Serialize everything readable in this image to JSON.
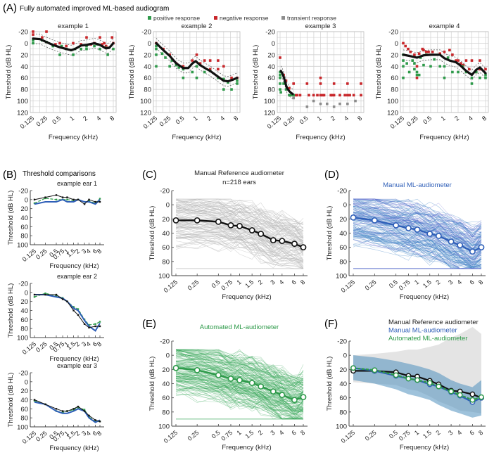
{
  "figure": {
    "panelA": {
      "letter": "(A)",
      "title": "Fully automated improved ML-based audiogram"
    },
    "panelB": {
      "letter": "(B)",
      "title": "Threshold comparisons"
    },
    "panelC": {
      "letter": "(C)"
    },
    "panelD": {
      "letter": "(D)"
    },
    "panelE": {
      "letter": "(E)"
    },
    "panelF": {
      "letter": "(F)"
    },
    "legendA": [
      {
        "label": "positive response",
        "color": "#2e9a4a"
      },
      {
        "label": "negative response",
        "color": "#c8262a"
      },
      {
        "label": "transient response",
        "color": "#8c8c8c"
      }
    ],
    "colors": {
      "reference": "#111111",
      "manual_ml": "#2f5fb8",
      "automated_ml": "#2e9a4a",
      "grey_traces": "#c8c8c8",
      "blue_traces": "#3a7fc4",
      "green_traces": "#3aa85a"
    }
  },
  "chart_data": [
    {
      "id": "A1",
      "type": "scatter",
      "title": "example 1",
      "xlabel": "Frequency (kHz)",
      "ylabel": "Threshold (dB HL)",
      "xticks": [
        "0.125",
        "0.25",
        "0.5",
        "1",
        "2",
        "4",
        "8"
      ],
      "x_scale": "log2",
      "yticks": [
        "-20",
        "0",
        "20",
        "40",
        "60",
        "80",
        "100",
        "120"
      ],
      "ylim": [
        -20,
        120
      ],
      "y_inverted": true,
      "curve": {
        "x": [
          0.125,
          0.18,
          0.25,
          0.35,
          0.5,
          0.7,
          0.9,
          1.1,
          1.5,
          2,
          3,
          4,
          5.5,
          6.5,
          8
        ],
        "y": [
          -8,
          -7,
          -2,
          3,
          7,
          10,
          12,
          10,
          4,
          3,
          0,
          3,
          9,
          8,
          0
        ]
      },
      "positive": {
        "x": [
          0.125,
          0.125,
          0.2,
          0.25,
          0.35,
          0.5,
          0.55,
          0.7,
          0.9,
          1,
          1.1,
          1.5,
          2,
          2,
          3,
          3.5,
          4,
          5.5,
          6,
          8
        ],
        "y": [
          0,
          -5,
          -5,
          -2,
          5,
          20,
          5,
          10,
          12,
          20,
          10,
          10,
          10,
          5,
          5,
          2,
          10,
          8,
          20,
          10
        ]
      },
      "negative": {
        "x": [
          0.125,
          0.125,
          0.2,
          0.25,
          0.25,
          0.4,
          0.5,
          0.7,
          1,
          1.5,
          2,
          2.5,
          3,
          4,
          4.5,
          5,
          5.5,
          6,
          7.5,
          8
        ],
        "y": [
          -20,
          -15,
          -10,
          -20,
          -2,
          2,
          0,
          5,
          0,
          2,
          -10,
          2,
          0,
          -10,
          2,
          0,
          5,
          8,
          -10,
          0
        ]
      },
      "transient": {
        "x": [],
        "y": []
      }
    },
    {
      "id": "A2",
      "type": "scatter",
      "title": "example 2",
      "xlabel": "Frequency (kHz)",
      "ylabel": "Threshold (dB HL)",
      "xticks": [
        "0.125",
        "0.25",
        "0.5",
        "1",
        "2",
        "4",
        "8"
      ],
      "x_scale": "log2",
      "yticks": [
        "-20",
        "0",
        "20",
        "40",
        "60",
        "80",
        "100",
        "120"
      ],
      "ylim": [
        -20,
        120
      ],
      "y_inverted": true,
      "curve": {
        "x": [
          0.125,
          0.18,
          0.25,
          0.35,
          0.5,
          0.65,
          0.8,
          0.95,
          1.2,
          1.6,
          2,
          3,
          4,
          5,
          6.5,
          8
        ],
        "y": [
          0,
          12,
          22,
          35,
          43,
          43,
          35,
          31,
          38,
          44,
          48,
          58,
          65,
          66,
          63,
          60
        ]
      },
      "positive": {
        "x": [
          0.125,
          0.125,
          0.125,
          0.125,
          0.17,
          0.2,
          0.25,
          0.28,
          0.35,
          0.4,
          0.5,
          0.5,
          0.8,
          1,
          1,
          1.5,
          2,
          3,
          4,
          4,
          5,
          6,
          8,
          8
        ],
        "y": [
          10,
          20,
          40,
          5,
          18,
          25,
          40,
          30,
          38,
          42,
          60,
          45,
          50,
          60,
          40,
          50,
          48,
          60,
          80,
          62,
          68,
          80,
          65,
          70
        ]
      },
      "negative": {
        "x": [
          0.125,
          0.18,
          0.25,
          0.35,
          0.5,
          0.8,
          1,
          1.2,
          1.5,
          2,
          2,
          3,
          3,
          4,
          6,
          8
        ],
        "y": [
          0,
          10,
          20,
          35,
          40,
          30,
          20,
          35,
          30,
          30,
          45,
          30,
          45,
          40,
          60,
          60
        ]
      },
      "transient": {
        "x": [],
        "y": []
      }
    },
    {
      "id": "A3",
      "type": "scatter",
      "title": "example 3",
      "xlabel": "Frequency (kHz)",
      "ylabel": "Threshold (dB HL)",
      "xticks": [
        "0.125",
        "0.25",
        "0.5",
        "1",
        "2",
        "4",
        "8"
      ],
      "x_scale": "log2",
      "yticks": [
        "-20",
        "0",
        "20",
        "40",
        "60",
        "80",
        "100",
        "120"
      ],
      "ylim": [
        -20,
        120
      ],
      "y_inverted": true,
      "curve": {
        "x": [
          0.13,
          0.14,
          0.15,
          0.16,
          0.17,
          0.18,
          0.2,
          0.22,
          0.24
        ],
        "y": [
          48,
          52,
          58,
          65,
          73,
          78,
          83,
          86,
          88
        ]
      },
      "positive": {
        "x": [
          0.125,
          0.125,
          0.125,
          0.125,
          0.125,
          0.13,
          0.15,
          0.17,
          0.2,
          0.22,
          0.25
        ],
        "y": [
          50,
          55,
          60,
          70,
          80,
          85,
          70,
          80,
          90,
          90,
          90
        ]
      },
      "negative": {
        "x": [
          0.125,
          0.15,
          0.17,
          0.2,
          0.25,
          0.25,
          0.28,
          0.3,
          0.35,
          0.5,
          0.55,
          0.7,
          0.85,
          1,
          1,
          1,
          1.1,
          1.2,
          1.7,
          1.8,
          2,
          2,
          2.7,
          3.5,
          4,
          4,
          4.5,
          5.5,
          8,
          8
        ],
        "y": [
          25,
          55,
          65,
          78,
          70,
          90,
          90,
          90,
          90,
          70,
          90,
          90,
          90,
          60,
          70,
          90,
          90,
          90,
          90,
          90,
          70,
          90,
          90,
          90,
          70,
          90,
          90,
          90,
          70,
          90
        ]
      },
      "transient": {
        "x": [
          0.25,
          0.5,
          0.7,
          1,
          1.4,
          2,
          2.7,
          4,
          6
        ],
        "y": [
          95,
          110,
          100,
          105,
          105,
          110,
          105,
          105,
          100
        ]
      }
    },
    {
      "id": "A4",
      "type": "scatter",
      "title": "example 4",
      "xlabel": "Frequency (kHz)",
      "ylabel": "Threshold (dB HL)",
      "xticks": [
        "0.125",
        "0.25",
        "0.5",
        "1",
        "2",
        "4",
        "8"
      ],
      "x_scale": "log2",
      "yticks": [
        "-20",
        "0",
        "20",
        "40",
        "60",
        "80",
        "100",
        "120"
      ],
      "ylim": [
        -20,
        120
      ],
      "y_inverted": true,
      "curve": {
        "x": [
          0.125,
          0.17,
          0.25,
          0.35,
          0.5,
          0.8,
          1,
          1.3,
          1.8,
          2.2,
          3,
          4,
          5,
          6,
          8
        ],
        "y": [
          20,
          22,
          25,
          21,
          20,
          20,
          26,
          30,
          33,
          38,
          48,
          55,
          46,
          42,
          52
        ]
      },
      "positive": {
        "x": [
          0.125,
          0.125,
          0.125,
          0.125,
          0.15,
          0.17,
          0.2,
          0.22,
          0.22,
          0.25,
          0.25,
          0.28,
          0.3,
          0.35,
          0.4,
          0.5,
          0.6,
          0.8,
          1,
          1,
          1.2,
          1.5,
          2,
          2.5,
          3,
          4,
          4,
          5,
          6,
          8,
          8
        ],
        "y": [
          20,
          30,
          40,
          60,
          35,
          50,
          30,
          35,
          45,
          50,
          55,
          55,
          25,
          38,
          20,
          40,
          28,
          40,
          40,
          60,
          25,
          50,
          50,
          40,
          50,
          60,
          70,
          50,
          60,
          55,
          60
        ]
      },
      "negative": {
        "x": [
          0.125,
          0.14,
          0.16,
          0.18,
          0.22,
          0.25,
          0.25,
          0.28,
          0.33,
          0.35,
          0.4,
          0.45,
          0.55,
          0.8,
          1,
          1.3,
          1.5,
          1.8,
          2,
          2.3,
          2.6,
          3,
          3.5,
          4,
          5,
          6,
          6,
          8
        ],
        "y": [
          0,
          5,
          10,
          15,
          20,
          40,
          60,
          18,
          10,
          12,
          15,
          15,
          15,
          18,
          15,
          12,
          20,
          30,
          30,
          35,
          38,
          30,
          45,
          30,
          50,
          30,
          45,
          45
        ]
      },
      "transient": {
        "x": [],
        "y": []
      }
    },
    {
      "id": "B1",
      "type": "line",
      "title": "example ear 1",
      "xlabel": "Frequency (kHz)",
      "ylabel": "Threshold (dB HL)",
      "xticks": [
        "0.125",
        "0.25",
        "0.5",
        "0.75",
        "1",
        "1.5",
        "2",
        "3",
        "4",
        "6",
        "8"
      ],
      "yticks": [
        "-20",
        "0",
        "20",
        "40",
        "60",
        "80",
        "100"
      ],
      "ylim": [
        -20,
        100
      ],
      "y_inverted": true,
      "series": [
        {
          "name": "Manual Reference audiometer",
          "values": [
            0,
            -5,
            -10,
            -5,
            -5,
            0,
            0,
            10,
            0,
            5,
            5
          ]
        },
        {
          "name": "Manual ML-audiometer",
          "values": [
            10,
            5,
            5,
            0,
            5,
            5,
            0,
            5,
            5,
            10,
            0
          ]
        },
        {
          "name": "Automated ML-audiometer",
          "values": [
            8,
            -3,
            0,
            0,
            0,
            2,
            0,
            5,
            3,
            8,
            -2
          ]
        }
      ]
    },
    {
      "id": "B2",
      "type": "line",
      "title": "example ear 2",
      "xlabel": "Frequency (kHz)",
      "ylabel": "Threshold (dB HL)",
      "xticks": [
        "0.125",
        "0.25",
        "0.5",
        "0.75",
        "1",
        "1.5",
        "2",
        "3",
        "4",
        "6",
        "8"
      ],
      "yticks": [
        "-20",
        "0",
        "20",
        "40",
        "60",
        "80",
        "100"
      ],
      "ylim": [
        -20,
        100
      ],
      "y_inverted": true,
      "series": [
        {
          "name": "Manual Reference audiometer",
          "values": [
            5,
            5,
            5,
            15,
            20,
            40,
            50,
            70,
            78,
            75,
            75
          ]
        },
        {
          "name": "Manual ML-audiometer",
          "values": [
            5,
            5,
            10,
            13,
            20,
            35,
            40,
            62,
            75,
            85,
            68
          ]
        },
        {
          "name": "Automated ML-audiometer",
          "values": [
            10,
            2,
            8,
            12,
            20,
            32,
            37,
            60,
            72,
            70,
            65
          ]
        }
      ]
    },
    {
      "id": "B3",
      "type": "line",
      "title": "example ear 3",
      "xlabel": "Frequency (kHz)",
      "ylabel": "Threshold (dB HL)",
      "xticks": [
        "0.125",
        "0.25",
        "0.5",
        "0.75",
        "1",
        "1.5",
        "2",
        "3",
        "4",
        "6",
        "8"
      ],
      "yticks": [
        "-20",
        "0",
        "20",
        "40",
        "60",
        "80",
        "100"
      ],
      "ylim": [
        -20,
        100
      ],
      "y_inverted": true,
      "series": [
        {
          "name": "Manual Reference audiometer",
          "values": [
            40,
            50,
            60,
            65,
            65,
            60,
            55,
            65,
            75,
            85,
            88
          ]
        },
        {
          "name": "Manual ML-audiometer",
          "values": [
            45,
            50,
            65,
            70,
            70,
            65,
            60,
            65,
            80,
            90,
            85
          ]
        },
        {
          "name": "Automated ML-audiometer",
          "values": [
            42,
            50,
            65,
            68,
            65,
            62,
            57,
            62,
            78,
            88,
            88
          ]
        }
      ]
    },
    {
      "id": "C",
      "type": "line",
      "title": "Manual Reference audiometer",
      "subtitle": "n=218 ears",
      "xlabel": "Frequency (kHz)",
      "ylabel": "Threshold (dB HL)",
      "xticks": [
        "0.125",
        "0.25",
        "0.5",
        "0.75",
        "1",
        "1.5",
        "2",
        "3",
        "4",
        "6",
        "8"
      ],
      "yticks": [
        "-20",
        "0",
        "20",
        "40",
        "60",
        "80",
        "100"
      ],
      "ylim": [
        -20,
        100
      ],
      "y_inverted": true,
      "mean": [
        22,
        22,
        24,
        29,
        30,
        36,
        41,
        50,
        51,
        55,
        60
      ],
      "individual_traces_count": 218
    },
    {
      "id": "D",
      "type": "line",
      "title": "Manual ML-audiometer",
      "xlabel": "Frequency (kHz)",
      "ylabel": "Threshold (dB HL)",
      "xticks": [
        "0.125",
        "0.25",
        "0.5",
        "0.75",
        "1",
        "1.5",
        "2",
        "3",
        "4",
        "6",
        "8"
      ],
      "yticks": [
        "-20",
        "0",
        "20",
        "40",
        "60",
        "80",
        "100"
      ],
      "ylim": [
        -20,
        100
      ],
      "y_inverted": true,
      "mean": [
        18,
        22,
        29,
        33,
        35,
        41,
        44,
        52,
        57,
        66,
        60
      ]
    },
    {
      "id": "E",
      "type": "line",
      "title": "Automated ML-audiometer",
      "xlabel": "Frequency (kHz)",
      "ylabel": "Threshold (dB HL)",
      "xticks": [
        "0.125",
        "0.25",
        "0.5",
        "0.75",
        "1",
        "1.5",
        "2",
        "3",
        "4",
        "6",
        "8"
      ],
      "yticks": [
        "-20",
        "0",
        "20",
        "40",
        "60",
        "80",
        "100"
      ],
      "ylim": [
        -20,
        100
      ],
      "y_inverted": true,
      "mean": [
        18,
        21,
        28,
        33,
        35,
        39,
        44,
        51,
        56,
        63,
        59
      ]
    },
    {
      "id": "F",
      "type": "line",
      "legend": [
        "Manual Reference audiometer",
        "Manual ML-audiometer",
        "Automated ML-audiometer"
      ],
      "xlabel": "Frequency (kHz)",
      "ylabel": "Threshold (dB HL)",
      "xticks": [
        "0.125",
        "0.25",
        "0.5",
        "0.75",
        "1",
        "1.5",
        "2",
        "3",
        "4",
        "6",
        "8"
      ],
      "yticks": [
        "-20",
        "0",
        "20",
        "40",
        "60",
        "80",
        "100"
      ],
      "ylim": [
        -20,
        100
      ],
      "y_inverted": true,
      "series": [
        {
          "name": "Manual Reference audiometer",
          "values": [
            22,
            22,
            24,
            29,
            30,
            36,
            41,
            50,
            51,
            55,
            60
          ]
        },
        {
          "name": "Manual ML-audiometer",
          "values": [
            18,
            22,
            29,
            33,
            35,
            41,
            44,
            52,
            57,
            66,
            60
          ]
        },
        {
          "name": "Automated ML-audiometer",
          "values": [
            18,
            21,
            28,
            33,
            35,
            39,
            44,
            51,
            56,
            63,
            59
          ]
        }
      ],
      "band_reference": {
        "upper": [
          0,
          -2,
          -5,
          -8,
          -8,
          -12,
          -15,
          -25,
          -30,
          -40,
          -30
        ],
        "lower": [
          38,
          40,
          42,
          48,
          50,
          58,
          65,
          72,
          78,
          80,
          82
        ]
      },
      "band_ml": {
        "upper": [
          0,
          3,
          8,
          12,
          15,
          20,
          25,
          35,
          40,
          45,
          35
        ],
        "lower": [
          35,
          40,
          48,
          55,
          58,
          63,
          70,
          78,
          82,
          88,
          85
        ]
      }
    }
  ]
}
